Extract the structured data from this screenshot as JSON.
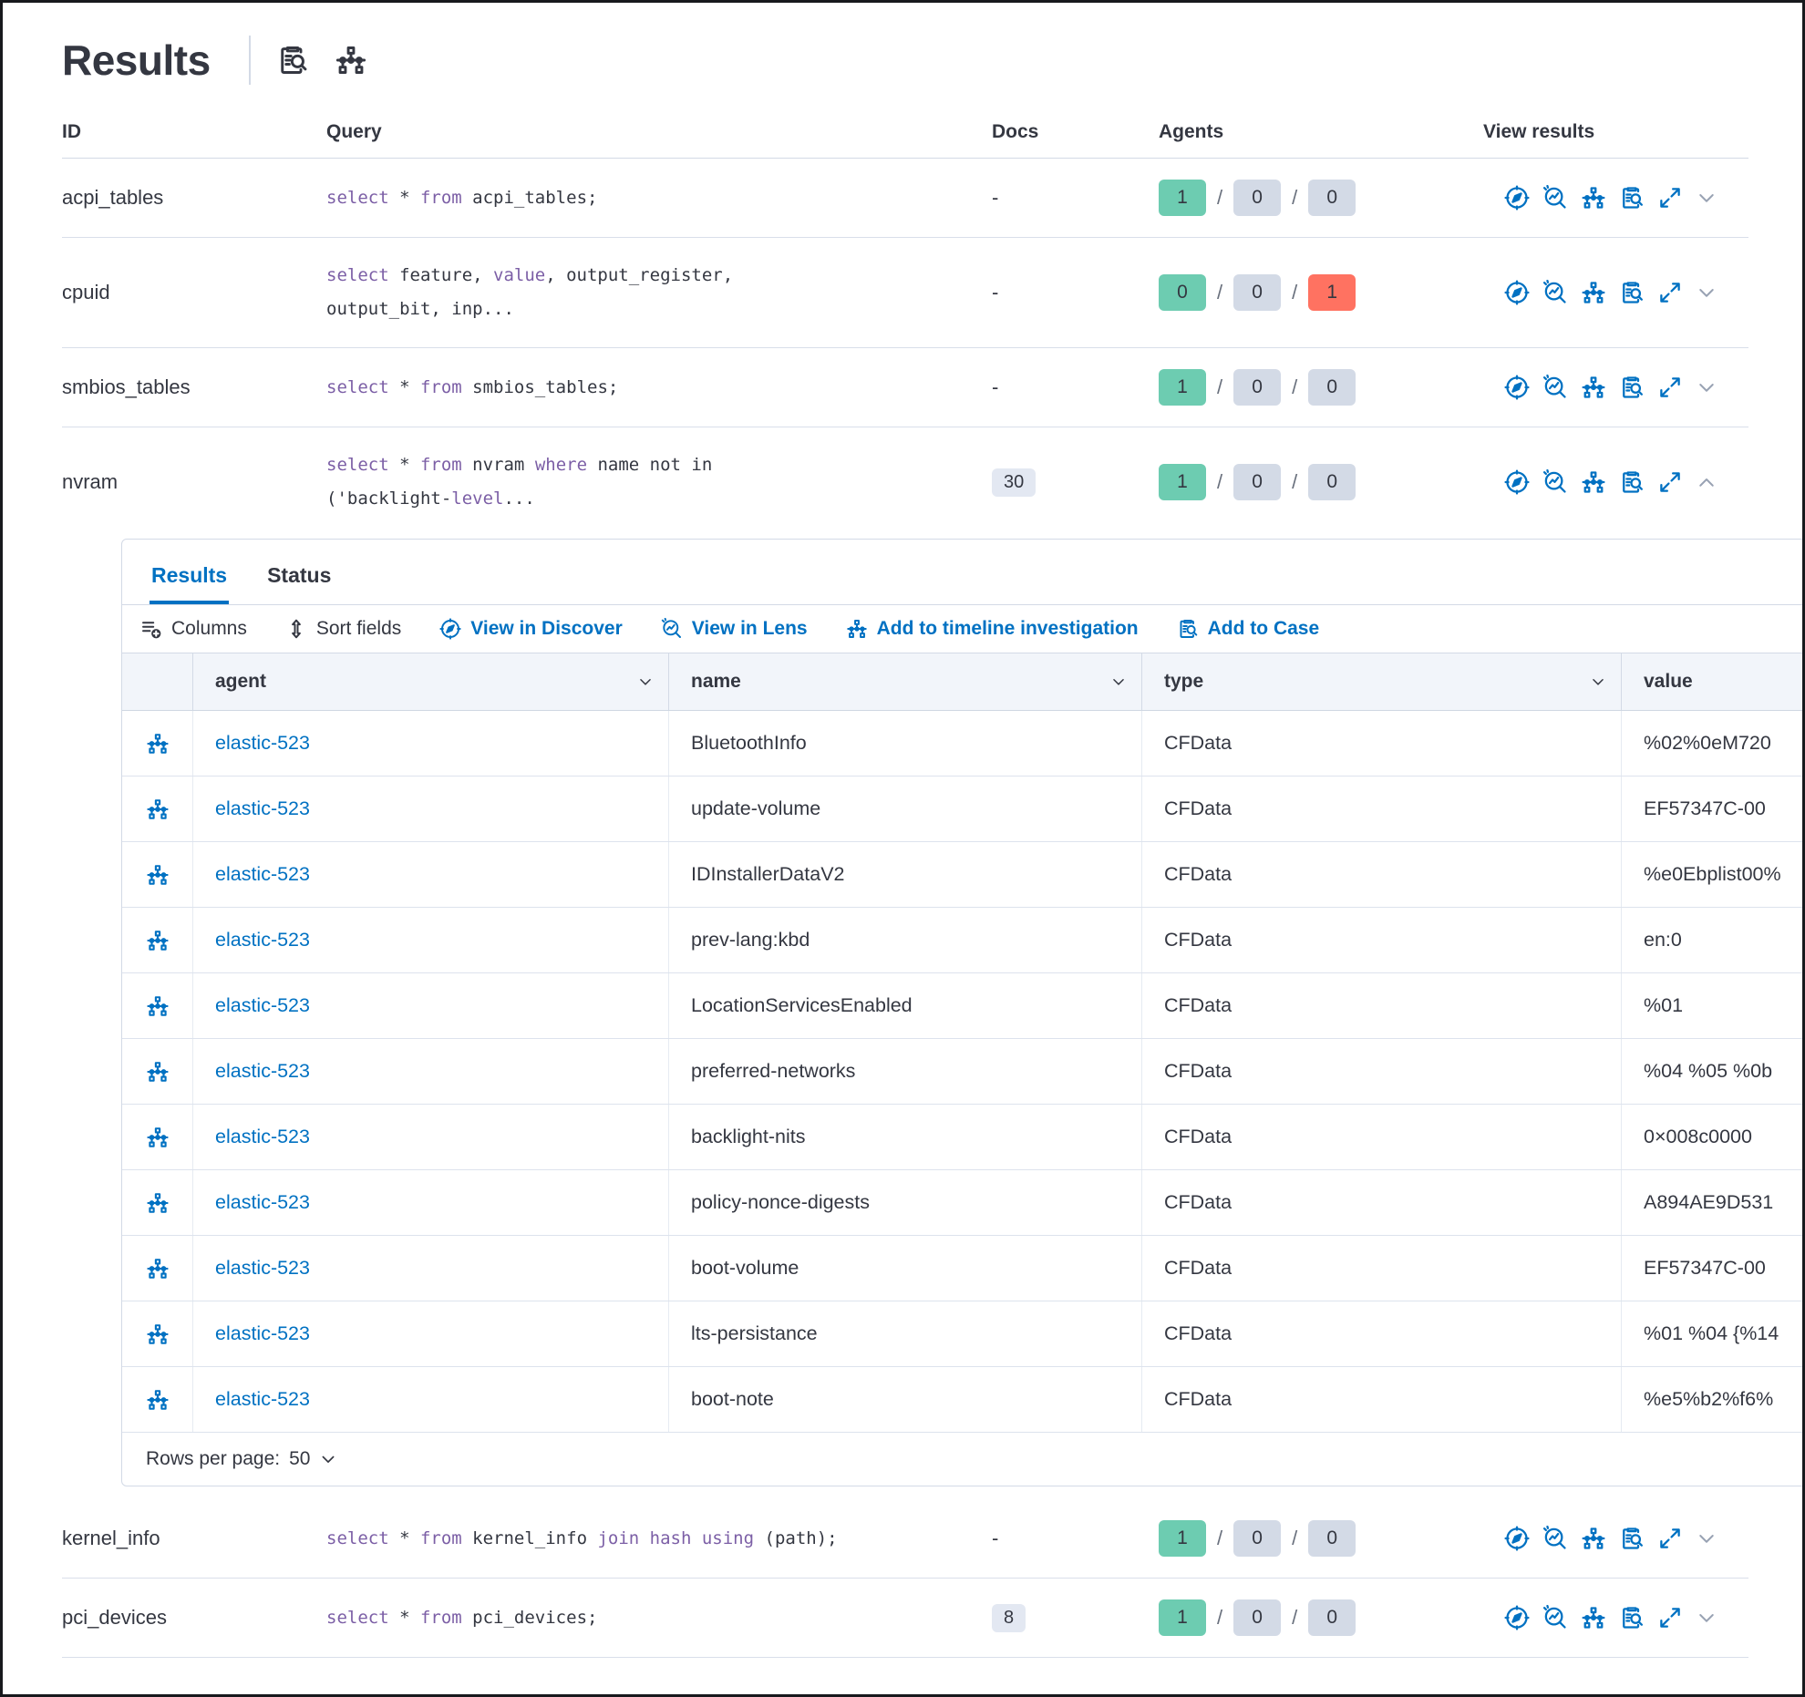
{
  "colors": {
    "accent_blue": "#0071c2",
    "text": "#343741",
    "code_keyword": "#7c5fa6",
    "badge_green": "#6dccb1",
    "badge_gray": "#d3dae6",
    "badge_red": "#ff7261"
  },
  "header": {
    "title": "Results",
    "icons": [
      "inspect-icon",
      "timeline-graph-icon"
    ]
  },
  "table": {
    "headers": {
      "id": "ID",
      "query": "Query",
      "docs": "Docs",
      "agents": "Agents",
      "view": "View results"
    },
    "rows": [
      {
        "id": "acpi_tables",
        "query": [
          {
            "t": "select",
            "k": true
          },
          {
            "t": " * "
          },
          {
            "t": "from",
            "k": true
          },
          {
            "t": " acpi_tables;"
          }
        ],
        "docs": "-",
        "docs_badge": false,
        "agents": [
          {
            "v": "1",
            "c": "green"
          },
          {
            "v": "0",
            "c": "gray"
          },
          {
            "v": "0",
            "c": "gray"
          }
        ],
        "expanded": false
      },
      {
        "id": "cpuid",
        "query": [
          {
            "t": "select",
            "k": true
          },
          {
            "t": " feature, "
          },
          {
            "t": "value",
            "k": true
          },
          {
            "t": ", output_register,"
          },
          {
            "br": true
          },
          {
            "t": "output_bit, inp..."
          }
        ],
        "docs": "-",
        "docs_badge": false,
        "agents": [
          {
            "v": "0",
            "c": "green"
          },
          {
            "v": "0",
            "c": "gray"
          },
          {
            "v": "1",
            "c": "red"
          }
        ],
        "expanded": false
      },
      {
        "id": "smbios_tables",
        "query": [
          {
            "t": "select",
            "k": true
          },
          {
            "t": " * "
          },
          {
            "t": "from",
            "k": true
          },
          {
            "t": " smbios_tables;"
          }
        ],
        "docs": "-",
        "docs_badge": false,
        "agents": [
          {
            "v": "1",
            "c": "green"
          },
          {
            "v": "0",
            "c": "gray"
          },
          {
            "v": "0",
            "c": "gray"
          }
        ],
        "expanded": false
      },
      {
        "id": "nvram",
        "query": [
          {
            "t": "select",
            "k": true
          },
          {
            "t": " * "
          },
          {
            "t": "from",
            "k": true
          },
          {
            "t": " nvram "
          },
          {
            "t": "where",
            "k": true
          },
          {
            "t": " name not in"
          },
          {
            "br": true
          },
          {
            "t": "('backlight-"
          },
          {
            "t": "level",
            "k": true
          },
          {
            "t": "..."
          }
        ],
        "docs": "30",
        "docs_badge": true,
        "agents": [
          {
            "v": "1",
            "c": "green"
          },
          {
            "v": "0",
            "c": "gray"
          },
          {
            "v": "0",
            "c": "gray"
          }
        ],
        "expanded": true
      },
      {
        "id": "kernel_info",
        "query": [
          {
            "t": "select",
            "k": true
          },
          {
            "t": " * "
          },
          {
            "t": "from",
            "k": true
          },
          {
            "t": " kernel_info "
          },
          {
            "t": "join",
            "k": true
          },
          {
            "t": " hash ",
            "k": true
          },
          {
            "t": "using",
            "k": true
          },
          {
            "t": " (path);"
          }
        ],
        "docs": "-",
        "docs_badge": false,
        "agents": [
          {
            "v": "1",
            "c": "green"
          },
          {
            "v": "0",
            "c": "gray"
          },
          {
            "v": "0",
            "c": "gray"
          }
        ],
        "expanded": false
      },
      {
        "id": "pci_devices",
        "query": [
          {
            "t": "select",
            "k": true
          },
          {
            "t": " * "
          },
          {
            "t": "from",
            "k": true
          },
          {
            "t": " pci_devices;"
          }
        ],
        "docs": "8",
        "docs_badge": true,
        "agents": [
          {
            "v": "1",
            "c": "green"
          },
          {
            "v": "0",
            "c": "gray"
          },
          {
            "v": "0",
            "c": "gray"
          }
        ],
        "expanded": false
      }
    ],
    "view_action_icons": [
      "discover-icon",
      "lens-icon",
      "timeline-graph-icon",
      "case-icon",
      "expand-icon"
    ]
  },
  "panel": {
    "tabs": [
      {
        "label": "Results",
        "active": true
      },
      {
        "label": "Status",
        "active": false
      }
    ],
    "toolbar": [
      {
        "label": "Columns",
        "icon": "columns-icon",
        "blue": false
      },
      {
        "label": "Sort fields",
        "icon": "sort-icon",
        "blue": false
      },
      {
        "label": "View in Discover",
        "icon": "discover-icon",
        "blue": true
      },
      {
        "label": "View in Lens",
        "icon": "lens-icon",
        "blue": true
      },
      {
        "label": "Add to timeline investigation",
        "icon": "timeline-graph-icon",
        "blue": true
      },
      {
        "label": "Add to Case",
        "icon": "case-icon",
        "blue": true
      }
    ],
    "grid": {
      "columns": [
        {
          "label": "agent",
          "sortable": true
        },
        {
          "label": "name",
          "sortable": true
        },
        {
          "label": "type",
          "sortable": true
        },
        {
          "label": "value",
          "sortable": false
        }
      ],
      "rows": [
        {
          "agent": "elastic-523",
          "name": "BluetoothInfo",
          "type": "CFData",
          "value": "%02%0eM720"
        },
        {
          "agent": "elastic-523",
          "name": "update-volume",
          "type": "CFData",
          "value": "EF57347C-00"
        },
        {
          "agent": "elastic-523",
          "name": "IDInstallerDataV2",
          "type": "CFData",
          "value": "%e0Ebplist00%"
        },
        {
          "agent": "elastic-523",
          "name": "prev-lang:kbd",
          "type": "CFData",
          "value": "en:0"
        },
        {
          "agent": "elastic-523",
          "name": "LocationServicesEnabled",
          "type": "CFData",
          "value": "%01"
        },
        {
          "agent": "elastic-523",
          "name": "preferred-networks",
          "type": "CFData",
          "value": "%04 %05 %0b"
        },
        {
          "agent": "elastic-523",
          "name": "backlight-nits",
          "type": "CFData",
          "value": "0×008c0000"
        },
        {
          "agent": "elastic-523",
          "name": "policy-nonce-digests",
          "type": "CFData",
          "value": "A894AE9D531"
        },
        {
          "agent": "elastic-523",
          "name": "boot-volume",
          "type": "CFData",
          "value": "EF57347C-00"
        },
        {
          "agent": "elastic-523",
          "name": "lts-persistance",
          "type": "CFData",
          "value": "%01 %04 {%14"
        },
        {
          "agent": "elastic-523",
          "name": "boot-note",
          "type": "CFData",
          "value": "%e5%b2%f6%"
        }
      ],
      "footer": {
        "rows_per_page_label": "Rows per page:",
        "rows_per_page_value": "50"
      }
    }
  }
}
